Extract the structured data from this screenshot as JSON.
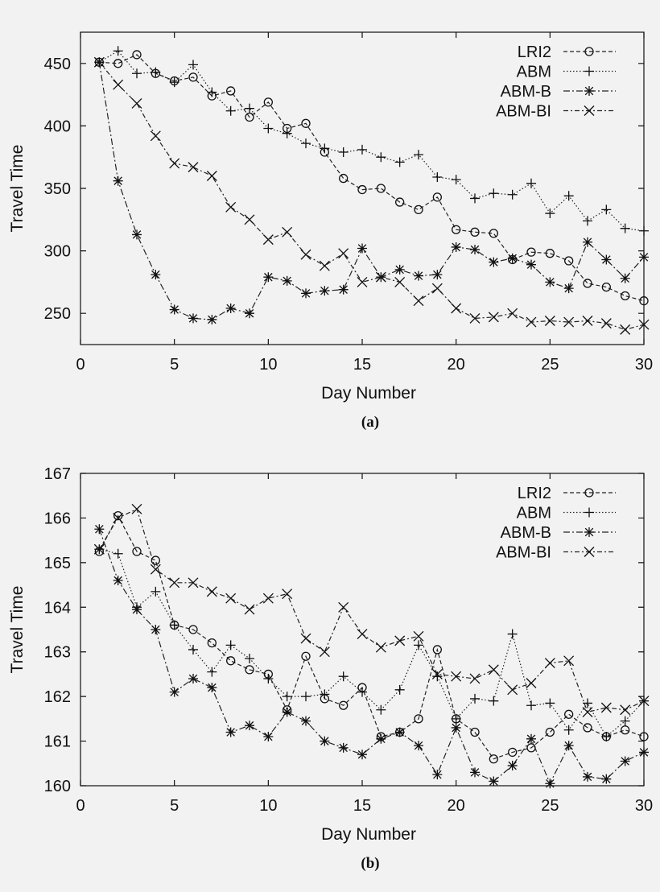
{
  "chart_data": [
    {
      "type": "line",
      "caption": "(a)",
      "xlabel": "Day Number",
      "ylabel": "Travel Time",
      "xlim": [
        0,
        30
      ],
      "ylim": [
        225,
        475
      ],
      "xticks": [
        0,
        5,
        10,
        15,
        20,
        25,
        30
      ],
      "yticks": [
        250,
        300,
        350,
        400,
        450
      ],
      "grid": false,
      "legend": "top-right",
      "x": [
        1,
        2,
        3,
        4,
        5,
        6,
        7,
        8,
        9,
        10,
        11,
        12,
        13,
        14,
        15,
        16,
        17,
        18,
        19,
        20,
        21,
        22,
        23,
        24,
        25,
        26,
        27,
        28,
        29,
        30
      ],
      "series": [
        {
          "name": "LRI2",
          "marker": "circle",
          "dash": "5,3",
          "values": [
            451,
            450,
            457,
            442,
            436,
            439,
            424,
            428,
            407,
            419,
            398,
            402,
            379,
            358,
            349,
            350,
            339,
            333,
            343,
            317,
            315,
            314,
            293,
            299,
            298,
            292,
            274,
            271,
            264,
            260
          ]
        },
        {
          "name": "ABM",
          "marker": "plus",
          "dash": "1.5,2.5",
          "values": [
            451,
            460,
            442,
            443,
            435,
            449,
            427,
            412,
            414,
            398,
            394,
            386,
            382,
            379,
            381,
            375,
            371,
            377,
            359,
            357,
            342,
            346,
            345,
            354,
            330,
            344,
            324,
            333,
            318,
            316
          ]
        },
        {
          "name": "ABM-B",
          "marker": "star",
          "dash": "8,3,2,3",
          "values": [
            451,
            356,
            313,
            281,
            253,
            246,
            245,
            254,
            250,
            279,
            276,
            266,
            268,
            269,
            302,
            279,
            285,
            280,
            281,
            303,
            301,
            291,
            294,
            289,
            275,
            270,
            307,
            293,
            278,
            295
          ]
        },
        {
          "name": "ABM-BI",
          "marker": "cross",
          "dash": "6,3,2,3",
          "values": [
            451,
            433,
            418,
            392,
            370,
            367,
            360,
            335,
            325,
            309,
            315,
            297,
            288,
            298,
            275,
            279,
            275,
            260,
            270,
            254,
            246,
            247,
            250,
            243,
            244,
            243,
            244,
            242,
            237,
            241
          ]
        }
      ]
    },
    {
      "type": "line",
      "caption": "(b)",
      "xlabel": "Day Number",
      "ylabel": "Travel Time",
      "xlim": [
        0,
        30
      ],
      "ylim": [
        160,
        167
      ],
      "xticks": [
        0,
        5,
        10,
        15,
        20,
        25,
        30
      ],
      "yticks": [
        160,
        161,
        162,
        163,
        164,
        165,
        166,
        167
      ],
      "grid": false,
      "legend": "top-right",
      "x": [
        1,
        2,
        3,
        4,
        5,
        6,
        7,
        8,
        9,
        10,
        11,
        12,
        13,
        14,
        15,
        16,
        17,
        18,
        19,
        20,
        21,
        22,
        23,
        24,
        25,
        26,
        27,
        28,
        29,
        30
      ],
      "series": [
        {
          "name": "LRI2",
          "marker": "circle",
          "dash": "5,3",
          "values": [
            165.25,
            166.05,
            165.25,
            165.05,
            163.6,
            163.5,
            163.2,
            162.8,
            162.6,
            162.5,
            161.7,
            162.9,
            161.95,
            161.8,
            162.2,
            161.1,
            161.2,
            161.5,
            163.05,
            161.5,
            161.2,
            160.6,
            160.75,
            160.85,
            161.2,
            161.6,
            161.3,
            161.1,
            161.25,
            161.1
          ]
        },
        {
          "name": "ABM",
          "marker": "plus",
          "dash": "1.5,2.5",
          "values": [
            165.3,
            165.2,
            164.0,
            164.35,
            163.6,
            163.05,
            162.55,
            163.15,
            162.85,
            162.4,
            162.0,
            162.0,
            162.05,
            162.45,
            162.1,
            161.7,
            162.15,
            163.15,
            162.45,
            161.5,
            161.95,
            161.9,
            163.4,
            161.8,
            161.85,
            161.25,
            161.85,
            161.1,
            161.45,
            161.9
          ]
        },
        {
          "name": "ABM-B",
          "marker": "star",
          "dash": "8,3,2,3",
          "values": [
            165.75,
            164.6,
            163.95,
            163.5,
            162.1,
            162.4,
            162.2,
            161.2,
            161.35,
            161.1,
            161.65,
            161.45,
            161.0,
            160.85,
            160.7,
            161.05,
            161.2,
            160.9,
            160.25,
            161.3,
            160.3,
            160.1,
            160.45,
            161.05,
            160.05,
            160.9,
            160.2,
            160.15,
            160.55,
            160.75
          ]
        },
        {
          "name": "ABM-BI",
          "marker": "cross",
          "dash": "6,3,2,3",
          "values": [
            165.3,
            166.0,
            166.2,
            164.85,
            164.55,
            164.55,
            164.35,
            164.2,
            163.95,
            164.2,
            164.3,
            163.3,
            163.0,
            164.0,
            163.4,
            163.1,
            163.25,
            163.35,
            162.5,
            162.45,
            162.4,
            162.6,
            162.15,
            162.3,
            162.75,
            162.8,
            161.65,
            161.75,
            161.7,
            161.9
          ]
        }
      ]
    }
  ]
}
